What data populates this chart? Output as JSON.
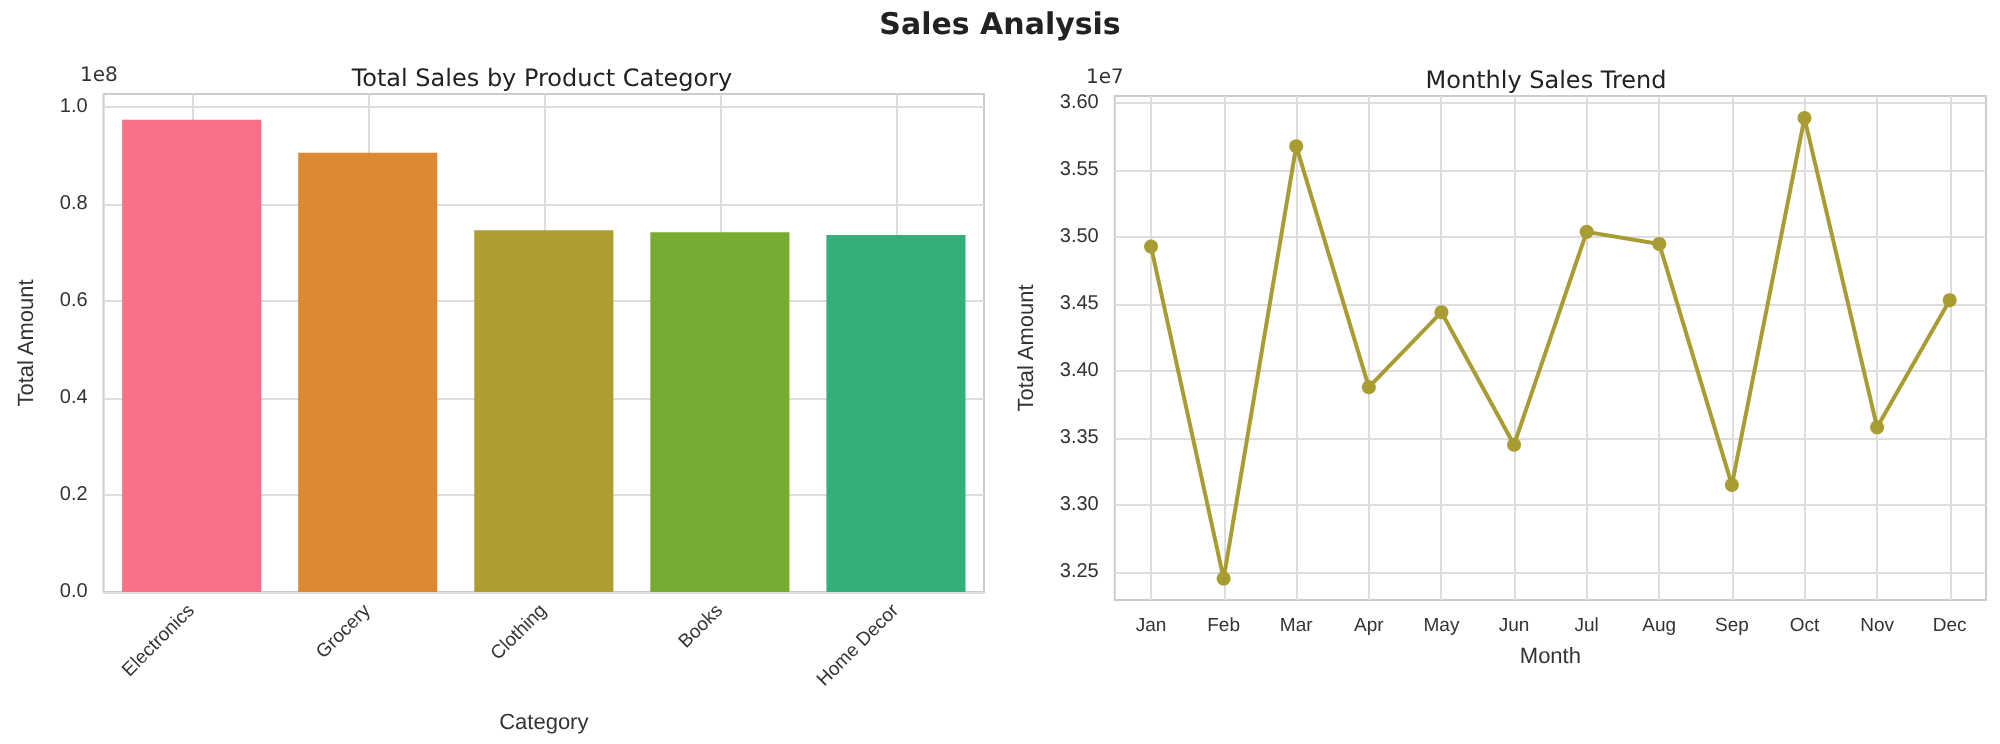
{
  "chart_data": [
    {
      "type": "bar",
      "title": "Total Sales by Product Category",
      "xlabel": "Category",
      "ylabel": "Total Amount",
      "annotations": [
        "Sales Analysis",
        "1e8"
      ],
      "categories": [
        "Electronics",
        "Grocery",
        "Clothing",
        "Books",
        "Home Decor"
      ],
      "values": [
        0.974,
        0.906,
        0.746,
        0.742,
        0.736
      ],
      "colors": [
        "#f77189",
        "#dc8932",
        "#ae9d31",
        "#77ab31",
        "#33b07a"
      ],
      "ylim": [
        0,
        1.027
      ],
      "yticks": [
        {
          "value": 0,
          "label": "0.0"
        },
        0.2,
        0.4,
        0.6,
        0.8,
        {
          "value": 1,
          "label": "1.0"
        }
      ],
      "grid": true
    },
    {
      "type": "line",
      "title": "Monthly Sales Trend",
      "xlabel": "Month",
      "ylabel": "Total Amount",
      "annotations": [
        "1e7"
      ],
      "categories": [
        "Jan",
        "Feb",
        "Mar",
        "Apr",
        "May",
        "Jun",
        "Jul",
        "Aug",
        "Sep",
        "Oct",
        "Nov",
        "Dec"
      ],
      "values": [
        3.493,
        3.245,
        3.568,
        3.388,
        3.444,
        3.345,
        3.504,
        3.495,
        3.315,
        3.589,
        3.358,
        3.453
      ],
      "color": "#a89c32",
      "marker": "circle",
      "line_style": "solid",
      "ylim": [
        3.229,
        3.6055
      ],
      "yticks": [
        3.25,
        {
          "value": 3.3,
          "label": "3.30"
        },
        3.35,
        {
          "value": 3.4,
          "label": "3.40"
        },
        3.45,
        {
          "value": 3.5,
          "label": "3.50"
        },
        3.55,
        {
          "value": 3.6,
          "label": "3.60"
        }
      ],
      "grid": true
    }
  ]
}
